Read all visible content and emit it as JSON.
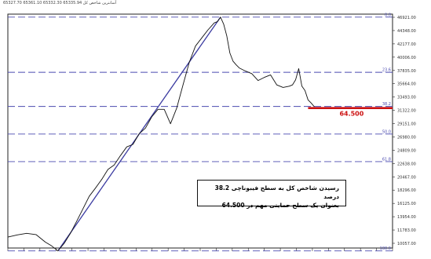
{
  "header": {
    "title": "آسانترين شاخص کل",
    "values": "65327.70 65361.10 65332.30 65335.94"
  },
  "chart_data": {
    "type": "line",
    "ylim": [
      10057.0,
      47400.0
    ],
    "y_ticks": [
      "46921.00",
      "44348.00",
      "42177.00",
      "40006.00",
      "37835.00",
      "35664.00",
      "33493.00",
      "31322.00",
      "29151.00",
      "26980.00",
      "24809.00",
      "22638.00",
      "20467.00",
      "18296.00",
      "16125.00",
      "13954.00",
      "11783.00",
      "10057.00"
    ],
    "fib_levels": [
      {
        "label": "0.0",
        "value": 46921.0
      },
      {
        "label": "23.6",
        "value": 38110.0
      },
      {
        "label": "38.2",
        "value": 32660.0
      },
      {
        "label": "50.0",
        "value": 28256.0
      },
      {
        "label": "61.8",
        "value": 23850.0
      },
      {
        "label": "100.0",
        "value": 9590.0
      }
    ],
    "trendline": {
      "from": [
        16,
        9590.0
      ],
      "to": [
        68,
        46921.0
      ]
    },
    "support": {
      "value": 32400.0,
      "label": "64.500",
      "x_range": [
        96,
        123
      ]
    },
    "series": [
      {
        "x": [
          0,
          3,
          6,
          9,
          12,
          14,
          16,
          18,
          20,
          22,
          24,
          26,
          28,
          30,
          32,
          34,
          36,
          38,
          40,
          42,
          44,
          46,
          48,
          50,
          52,
          54,
          56,
          58,
          60,
          62,
          64,
          66,
          67,
          68,
          69,
          70,
          71,
          72,
          73,
          74,
          76,
          78,
          80,
          82,
          84,
          86,
          88,
          90,
          91,
          92,
          93,
          94,
          95,
          96,
          97,
          98
        ],
        "values": [
          11800,
          12150,
          12400,
          12200,
          11000,
          10400,
          9590,
          10800,
          12400,
          14300,
          16300,
          18300,
          19600,
          21000,
          22600,
          23300,
          24800,
          26200,
          26600,
          28300,
          29200,
          31000,
          32200,
          32200,
          29900,
          32400,
          36100,
          39700,
          42300,
          43600,
          44900,
          46000,
          46200,
          46921,
          45800,
          43900,
          41200,
          39900,
          39300,
          38800,
          38300,
          37900,
          36800,
          37300,
          37700,
          36100,
          35700,
          35900,
          36100,
          36900,
          38700,
          35900,
          35200,
          33700,
          33200,
          32600
        ]
      }
    ],
    "annotation_lines": [
      "رسيدن شاخص کل به سطح فيبوناچی 38.2 درصد",
      "بعنوان يک سطح حمايتی مهم در 64.500"
    ]
  },
  "colors": {
    "price": "#111111",
    "trendline": "#3a3aa0",
    "fib": "#4b4bb0",
    "support": "#cc1111",
    "axis": "#222222"
  }
}
